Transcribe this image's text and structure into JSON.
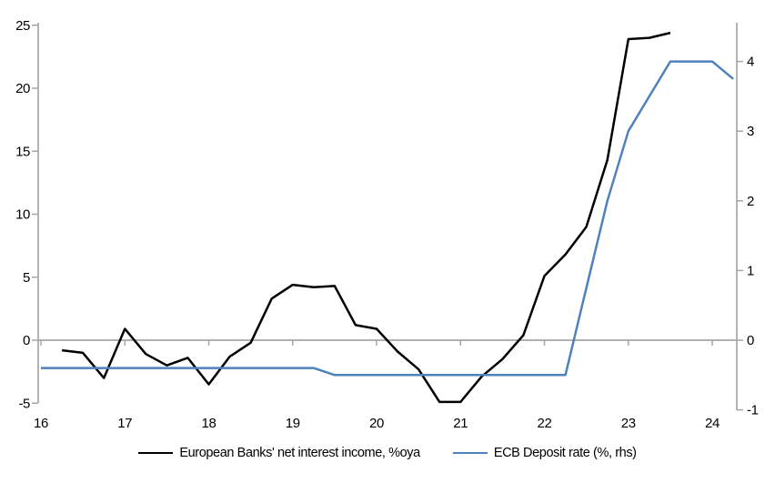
{
  "chart_data": {
    "type": "line",
    "title": "",
    "x_axis": {
      "tick_labels": [
        "16",
        "17",
        "18",
        "19",
        "20",
        "21",
        "22",
        "23",
        "24"
      ],
      "tick_values": [
        16,
        17,
        18,
        19,
        20,
        21,
        22,
        23,
        24
      ],
      "range": [
        16,
        24.4
      ]
    },
    "left_axis": {
      "tick_labels": [
        "25",
        "20",
        "15",
        "10",
        "5",
        "0",
        "-5"
      ],
      "tick_values": [
        25,
        20,
        15,
        10,
        5,
        0,
        -5
      ],
      "range": [
        -5.2,
        25.2
      ]
    },
    "right_axis": {
      "tick_labels": [
        "4",
        "3",
        "2",
        "1",
        "0",
        "-1"
      ],
      "tick_values": [
        4,
        3,
        2,
        1,
        0,
        -1
      ],
      "range": [
        -1.1,
        4.55
      ]
    },
    "grid": "zero-line-only",
    "legend_position": "bottom-center",
    "series": [
      {
        "name": "European Banks' net interest income, %oya",
        "axis": "left",
        "color": "#000000",
        "x": [
          16.25,
          16.5,
          16.75,
          17,
          17.25,
          17.5,
          17.75,
          18,
          18.25,
          18.5,
          18.75,
          19,
          19.25,
          19.5,
          19.75,
          20,
          20.25,
          20.5,
          20.75,
          21,
          21.25,
          21.5,
          21.75,
          22,
          22.25,
          22.5,
          22.75,
          23,
          23.25,
          23.5
        ],
        "values": [
          -0.8,
          -1,
          -3,
          0.9,
          -1.1,
          -2,
          -1.4,
          -3.5,
          -1.3,
          -0.2,
          3.3,
          4.4,
          4.2,
          4.3,
          1.2,
          0.9,
          -0.9,
          -2.3,
          -4.9,
          -4.9,
          -2.9,
          -1.5,
          0.4,
          5.1,
          6.8,
          9,
          14.3,
          23.9,
          24,
          24.4
        ]
      },
      {
        "name": "ECB Deposit rate (%, rhs)",
        "axis": "right",
        "color": "#4f81bd",
        "x": [
          16,
          16.25,
          16.5,
          16.75,
          17,
          17.25,
          17.5,
          17.75,
          18,
          18.25,
          18.5,
          18.75,
          19,
          19.25,
          19.5,
          19.75,
          20,
          20.25,
          20.5,
          20.75,
          21,
          21.25,
          21.5,
          21.75,
          22,
          22.25,
          22.5,
          22.75,
          23,
          23.25,
          23.5,
          23.75,
          24,
          24.25
        ],
        "values": [
          -0.4,
          -0.4,
          -0.4,
          -0.4,
          -0.4,
          -0.4,
          -0.4,
          -0.4,
          -0.4,
          -0.4,
          -0.4,
          -0.4,
          -0.4,
          -0.4,
          -0.5,
          -0.5,
          -0.5,
          -0.5,
          -0.5,
          -0.5,
          -0.5,
          -0.5,
          -0.5,
          -0.5,
          -0.5,
          -0.5,
          0.75,
          2,
          3,
          3.5,
          4,
          4,
          4,
          3.75
        ]
      }
    ]
  },
  "legend": {
    "items": [
      {
        "label": "European Banks' net interest income, %oya",
        "color": "#000000"
      },
      {
        "label": "ECB Deposit rate (%, rhs)",
        "color": "#4f81bd"
      }
    ]
  },
  "colors": {
    "axis": "#a6a6a6",
    "nii_line": "#000000",
    "ecb_line": "#4f81bd",
    "text": "#000000"
  }
}
